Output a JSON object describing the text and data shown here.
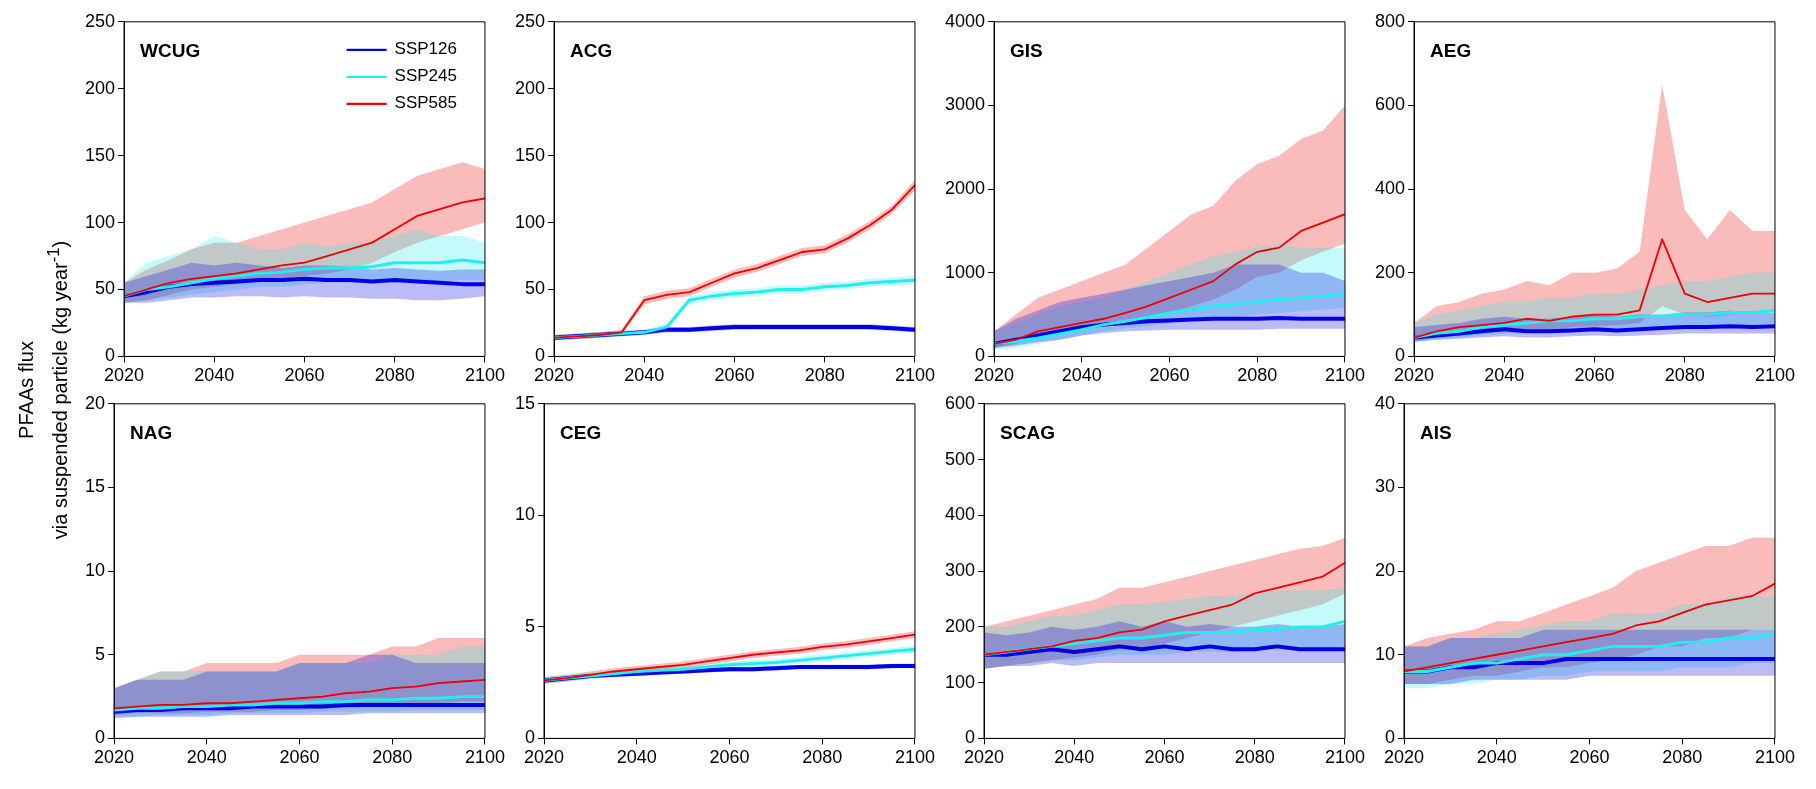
{
  "chart_data": [
    {
      "type": "line",
      "title": "WCUG",
      "ylabel": "PFAAs flux\nvia suspended particle (kg year$^{-1}$)",
      "legend": "top right",
      "grid": false,
      "x": [
        2020,
        2025,
        2030,
        2035,
        2040,
        2045,
        2050,
        2055,
        2060,
        2065,
        2070,
        2075,
        2080,
        2085,
        2090,
        2095,
        2100
      ],
      "xlim": [
        2020,
        2100
      ],
      "xticks": [
        2020,
        2040,
        2060,
        2080,
        2100
      ],
      "ylim": [
        0,
        250
      ],
      "yticks": [
        0,
        50,
        100,
        150,
        200,
        250
      ],
      "series": [
        {
          "name": "SSP126",
          "color": "#0000e6",
          "values": [
            45,
            48,
            52,
            54,
            55,
            56,
            57,
            57,
            58,
            57,
            57,
            56,
            57,
            56,
            55,
            54,
            54
          ],
          "lower": [
            40,
            40,
            42,
            44,
            44,
            45,
            45,
            44,
            45,
            44,
            44,
            43,
            43,
            42,
            42,
            43,
            45
          ],
          "upper": [
            55,
            60,
            65,
            70,
            68,
            70,
            68,
            66,
            68,
            68,
            67,
            65,
            66,
            65,
            64,
            65,
            65
          ]
        },
        {
          "name": "SSP245",
          "color": "#22eeee",
          "values": [
            45,
            50,
            52,
            55,
            58,
            60,
            62,
            63,
            65,
            66,
            66,
            67,
            70,
            70,
            70,
            72,
            70
          ],
          "lower": [
            40,
            42,
            44,
            46,
            48,
            50,
            52,
            52,
            54,
            55,
            55,
            55,
            55,
            56,
            56,
            57,
            57
          ],
          "upper": [
            55,
            70,
            75,
            80,
            90,
            85,
            80,
            80,
            85,
            82,
            85,
            85,
            90,
            95,
            90,
            90,
            85
          ]
        },
        {
          "name": "SSP585",
          "color": "#ee0000",
          "values": [
            45,
            50,
            55,
            58,
            60,
            62,
            65,
            68,
            70,
            75,
            80,
            85,
            95,
            105,
            110,
            115,
            118
          ],
          "lower": [
            40,
            42,
            46,
            50,
            52,
            54,
            56,
            58,
            60,
            62,
            65,
            70,
            78,
            85,
            90,
            95,
            100
          ],
          "upper": [
            55,
            65,
            72,
            80,
            85,
            85,
            90,
            95,
            100,
            105,
            110,
            115,
            125,
            135,
            140,
            145,
            140
          ]
        }
      ]
    },
    {
      "type": "line",
      "title": "ACG",
      "grid": false,
      "x": [
        2020,
        2025,
        2030,
        2035,
        2040,
        2045,
        2050,
        2055,
        2060,
        2065,
        2070,
        2075,
        2080,
        2085,
        2090,
        2095,
        2100
      ],
      "xlim": [
        2020,
        2100
      ],
      "xticks": [
        2020,
        2040,
        2060,
        2080,
        2100
      ],
      "ylim": [
        0,
        250
      ],
      "yticks": [
        0,
        50,
        100,
        150,
        200,
        250
      ],
      "series": [
        {
          "color": "#0000e6",
          "values": [
            14,
            15,
            16,
            17,
            18,
            20,
            20,
            21,
            22,
            22,
            22,
            22,
            22,
            22,
            22,
            21,
            20
          ],
          "lower": [
            12,
            13,
            14,
            15,
            16,
            18,
            18,
            19,
            20,
            20,
            20,
            20,
            20,
            20,
            20,
            19,
            18
          ],
          "upper": [
            16,
            17,
            18,
            19,
            20,
            22,
            22,
            23,
            24,
            24,
            24,
            24,
            24,
            24,
            24,
            23,
            22
          ]
        },
        {
          "color": "#22eeee",
          "values": [
            14,
            15,
            16,
            17,
            18,
            22,
            42,
            45,
            47,
            48,
            50,
            50,
            52,
            53,
            55,
            56,
            57
          ],
          "lower": [
            12,
            13,
            14,
            15,
            16,
            20,
            39,
            42,
            44,
            45,
            47,
            47,
            49,
            50,
            52,
            53,
            54
          ],
          "upper": [
            16,
            17,
            18,
            19,
            20,
            24,
            45,
            48,
            50,
            51,
            53,
            53,
            55,
            56,
            58,
            59,
            60
          ]
        },
        {
          "color": "#ee0000",
          "values": [
            14,
            15,
            16,
            18,
            42,
            46,
            48,
            55,
            62,
            66,
            72,
            78,
            80,
            88,
            98,
            110,
            128
          ],
          "lower": [
            12,
            13,
            14,
            16,
            39,
            43,
            45,
            52,
            59,
            63,
            69,
            75,
            77,
            85,
            95,
            107,
            124
          ],
          "upper": [
            16,
            17,
            18,
            20,
            45,
            49,
            51,
            58,
            65,
            69,
            75,
            81,
            83,
            91,
            101,
            113,
            132
          ]
        }
      ]
    },
    {
      "type": "line",
      "title": "GIS",
      "grid": false,
      "x": [
        2020,
        2025,
        2030,
        2035,
        2040,
        2045,
        2050,
        2055,
        2060,
        2065,
        2070,
        2075,
        2080,
        2085,
        2090,
        2095,
        2100
      ],
      "xlim": [
        2020,
        2100
      ],
      "xticks": [
        2020,
        2040,
        2060,
        2080,
        2100
      ],
      "ylim": [
        0,
        4000
      ],
      "yticks": [
        0,
        1000,
        2000,
        3000,
        4000
      ],
      "series": [
        {
          "color": "#0000e6",
          "values": [
            150,
            200,
            250,
            300,
            350,
            380,
            400,
            420,
            430,
            440,
            450,
            450,
            450,
            460,
            450,
            450,
            450
          ],
          "lower": [
            100,
            130,
            170,
            200,
            250,
            280,
            300,
            310,
            320,
            320,
            320,
            320,
            320,
            330,
            330,
            330,
            330
          ],
          "upper": [
            300,
            450,
            550,
            650,
            700,
            750,
            800,
            850,
            900,
            950,
            1000,
            1100,
            1100,
            1100,
            1000,
            1000,
            900
          ]
        },
        {
          "color": "#22eeee",
          "values": [
            150,
            180,
            220,
            270,
            320,
            380,
            420,
            470,
            520,
            560,
            600,
            620,
            650,
            680,
            700,
            720,
            750
          ],
          "lower": [
            80,
            100,
            150,
            200,
            250,
            300,
            330,
            360,
            400,
            420,
            450,
            470,
            500,
            520,
            540,
            560,
            580
          ],
          "upper": [
            300,
            400,
            500,
            600,
            650,
            700,
            800,
            900,
            1000,
            1100,
            1200,
            1250,
            1300,
            1350,
            1300,
            1300,
            1300
          ]
        },
        {
          "color": "#ee0000",
          "values": [
            150,
            200,
            300,
            350,
            400,
            450,
            520,
            600,
            700,
            800,
            900,
            1100,
            1250,
            1300,
            1500,
            1600,
            1700
          ],
          "lower": [
            100,
            150,
            220,
            280,
            320,
            360,
            400,
            450,
            520,
            600,
            680,
            800,
            950,
            1000,
            1150,
            1250,
            1350
          ],
          "upper": [
            300,
            500,
            700,
            800,
            900,
            1000,
            1100,
            1300,
            1500,
            1700,
            1800,
            2100,
            2300,
            2400,
            2600,
            2700,
            3000
          ]
        }
      ]
    },
    {
      "type": "line",
      "title": "AEG",
      "grid": false,
      "x": [
        2020,
        2025,
        2030,
        2035,
        2040,
        2045,
        2050,
        2055,
        2060,
        2065,
        2070,
        2075,
        2080,
        2085,
        2090,
        2095,
        2100
      ],
      "xlim": [
        2020,
        2100
      ],
      "xticks": [
        2020,
        2040,
        2060,
        2080,
        2100
      ],
      "ylim": [
        0,
        800
      ],
      "yticks": [
        0,
        200,
        400,
        600,
        800
      ],
      "series": [
        {
          "color": "#0000e6",
          "values": [
            45,
            50,
            55,
            60,
            65,
            60,
            60,
            62,
            65,
            62,
            65,
            68,
            70,
            70,
            72,
            70,
            72
          ],
          "lower": [
            35,
            40,
            42,
            45,
            48,
            45,
            45,
            48,
            50,
            48,
            50,
            52,
            55,
            55,
            55,
            55,
            55
          ],
          "upper": [
            70,
            75,
            80,
            90,
            95,
            90,
            90,
            95,
            100,
            95,
            100,
            100,
            105,
            105,
            110,
            105,
            105
          ]
        },
        {
          "color": "#22eeee",
          "values": [
            45,
            55,
            60,
            70,
            75,
            80,
            85,
            85,
            90,
            90,
            95,
            95,
            100,
            100,
            105,
            105,
            110
          ],
          "lower": [
            35,
            40,
            45,
            50,
            55,
            55,
            60,
            60,
            65,
            65,
            70,
            70,
            70,
            75,
            75,
            75,
            80
          ],
          "upper": [
            80,
            100,
            110,
            120,
            130,
            130,
            140,
            140,
            150,
            150,
            160,
            170,
            180,
            180,
            190,
            200,
            200
          ]
        },
        {
          "color": "#ee0000",
          "values": [
            45,
            60,
            70,
            75,
            80,
            90,
            85,
            95,
            100,
            100,
            110,
            280,
            150,
            130,
            140,
            150,
            150
          ],
          "lower": [
            35,
            45,
            50,
            55,
            60,
            65,
            62,
            70,
            72,
            75,
            80,
            120,
            100,
            95,
            100,
            105,
            110
          ],
          "upper": [
            80,
            120,
            130,
            150,
            160,
            180,
            170,
            200,
            200,
            210,
            250,
            650,
            350,
            280,
            350,
            300,
            300
          ]
        }
      ]
    },
    {
      "type": "line",
      "title": "NAG",
      "grid": false,
      "x": [
        2020,
        2025,
        2030,
        2035,
        2040,
        2045,
        2050,
        2055,
        2060,
        2065,
        2070,
        2075,
        2080,
        2085,
        2090,
        2095,
        2100
      ],
      "xlim": [
        2020,
        2100
      ],
      "xticks": [
        2020,
        2040,
        2060,
        2080,
        2100
      ],
      "ylim": [
        0,
        20
      ],
      "yticks": [
        0,
        5,
        10,
        15,
        20
      ],
      "series": [
        {
          "color": "#0000e6",
          "values": [
            1.6,
            1.7,
            1.7,
            1.8,
            1.8,
            1.8,
            1.9,
            1.9,
            1.9,
            1.9,
            2.0,
            2.0,
            2.0,
            2.0,
            2.0,
            2.0,
            2.0
          ],
          "lower": [
            1.2,
            1.3,
            1.3,
            1.3,
            1.3,
            1.4,
            1.4,
            1.4,
            1.4,
            1.4,
            1.4,
            1.5,
            1.5,
            1.5,
            1.5,
            1.5,
            1.5
          ],
          "upper": [
            3.0,
            3.5,
            3.5,
            3.5,
            4.0,
            4.0,
            4.0,
            4.0,
            4.5,
            4.5,
            4.5,
            5.0,
            5.0,
            4.5,
            4.5,
            4.5,
            4.5
          ]
        },
        {
          "color": "#22eeee",
          "values": [
            1.7,
            1.8,
            1.8,
            1.9,
            1.9,
            2.0,
            2.0,
            2.1,
            2.1,
            2.2,
            2.2,
            2.3,
            2.3,
            2.4,
            2.4,
            2.5,
            2.5
          ],
          "lower": [
            1.3,
            1.3,
            1.4,
            1.4,
            1.4,
            1.5,
            1.5,
            1.5,
            1.5,
            1.6,
            1.6,
            1.6,
            1.6,
            1.7,
            1.7,
            1.7,
            1.7
          ],
          "upper": [
            3.0,
            3.5,
            4.0,
            4.0,
            4.0,
            4.0,
            4.0,
            4.0,
            4.5,
            4.5,
            4.5,
            4.5,
            5.0,
            5.0,
            5.0,
            5.5,
            5.5
          ]
        },
        {
          "color": "#ee0000",
          "values": [
            1.8,
            1.9,
            2.0,
            2.0,
            2.1,
            2.1,
            2.2,
            2.3,
            2.4,
            2.5,
            2.7,
            2.8,
            3.0,
            3.1,
            3.3,
            3.4,
            3.5
          ],
          "lower": [
            1.4,
            1.5,
            1.5,
            1.5,
            1.6,
            1.6,
            1.6,
            1.7,
            1.7,
            1.8,
            1.8,
            1.9,
            2.0,
            2.0,
            2.1,
            2.2,
            2.2
          ],
          "upper": [
            3.0,
            3.5,
            4.0,
            4.0,
            4.5,
            4.5,
            4.5,
            4.5,
            5.0,
            5.0,
            5.0,
            5.0,
            5.5,
            5.5,
            6.0,
            6.0,
            6.0
          ]
        }
      ]
    },
    {
      "type": "line",
      "title": "CEG",
      "grid": false,
      "x": [
        2020,
        2025,
        2030,
        2035,
        2040,
        2045,
        2050,
        2055,
        2060,
        2065,
        2070,
        2075,
        2080,
        2085,
        2090,
        2095,
        2100
      ],
      "xlim": [
        2020,
        2100
      ],
      "xticks": [
        2020,
        2040,
        2060,
        2080,
        2100
      ],
      "ylim": [
        0,
        15
      ],
      "yticks": [
        0,
        5,
        10,
        15
      ],
      "series": [
        {
          "color": "#0000e6",
          "values": [
            2.6,
            2.7,
            2.8,
            2.85,
            2.9,
            2.95,
            3.0,
            3.05,
            3.1,
            3.1,
            3.15,
            3.2,
            3.2,
            3.2,
            3.2,
            3.25,
            3.25
          ],
          "lower": [
            2.5,
            2.6,
            2.7,
            2.75,
            2.8,
            2.85,
            2.9,
            2.95,
            3.0,
            3.0,
            3.05,
            3.1,
            3.1,
            3.1,
            3.1,
            3.15,
            3.15
          ],
          "upper": [
            2.7,
            2.8,
            2.9,
            2.95,
            3.0,
            3.05,
            3.1,
            3.15,
            3.2,
            3.2,
            3.25,
            3.3,
            3.3,
            3.3,
            3.3,
            3.35,
            3.35
          ]
        },
        {
          "color": "#22eeee",
          "values": [
            2.6,
            2.7,
            2.8,
            2.9,
            3.0,
            3.05,
            3.1,
            3.2,
            3.3,
            3.35,
            3.4,
            3.5,
            3.6,
            3.7,
            3.8,
            3.9,
            4.0
          ],
          "lower": [
            2.45,
            2.55,
            2.65,
            2.75,
            2.85,
            2.9,
            2.95,
            3.05,
            3.15,
            3.2,
            3.25,
            3.35,
            3.45,
            3.55,
            3.65,
            3.75,
            3.85
          ],
          "upper": [
            2.75,
            2.85,
            2.95,
            3.05,
            3.15,
            3.2,
            3.25,
            3.35,
            3.45,
            3.5,
            3.55,
            3.65,
            3.75,
            3.85,
            3.95,
            4.05,
            4.15
          ]
        },
        {
          "color": "#ee0000",
          "values": [
            2.6,
            2.7,
            2.85,
            3.0,
            3.1,
            3.2,
            3.3,
            3.45,
            3.6,
            3.75,
            3.85,
            3.95,
            4.1,
            4.2,
            4.35,
            4.5,
            4.65
          ],
          "lower": [
            2.45,
            2.55,
            2.7,
            2.85,
            2.95,
            3.05,
            3.15,
            3.3,
            3.45,
            3.6,
            3.7,
            3.8,
            3.95,
            4.05,
            4.2,
            4.35,
            4.5
          ],
          "upper": [
            2.75,
            2.85,
            3.0,
            3.15,
            3.25,
            3.35,
            3.45,
            3.6,
            3.75,
            3.9,
            4.0,
            4.1,
            4.25,
            4.35,
            4.5,
            4.65,
            4.8
          ]
        }
      ]
    },
    {
      "type": "line",
      "title": "SCAG",
      "grid": false,
      "x": [
        2020,
        2025,
        2030,
        2035,
        2040,
        2045,
        2050,
        2055,
        2060,
        2065,
        2070,
        2075,
        2080,
        2085,
        2090,
        2095,
        2100
      ],
      "xlim": [
        2020,
        2100
      ],
      "xticks": [
        2020,
        2040,
        2060,
        2080,
        2100
      ],
      "ylim": [
        0,
        600
      ],
      "yticks": [
        0,
        100,
        200,
        300,
        400,
        500,
        600
      ],
      "series": [
        {
          "color": "#0000e6",
          "values": [
            150,
            150,
            155,
            160,
            155,
            160,
            165,
            160,
            165,
            160,
            165,
            160,
            160,
            165,
            160,
            160,
            160
          ],
          "lower": [
            125,
            130,
            130,
            135,
            130,
            135,
            135,
            135,
            135,
            135,
            135,
            135,
            135,
            135,
            135,
            135,
            135
          ],
          "upper": [
            190,
            185,
            190,
            200,
            195,
            200,
            210,
            200,
            210,
            200,
            205,
            200,
            200,
            205,
            200,
            200,
            205
          ]
        },
        {
          "color": "#22eeee",
          "values": [
            150,
            155,
            160,
            165,
            170,
            175,
            180,
            180,
            185,
            190,
            190,
            190,
            195,
            195,
            200,
            200,
            210
          ],
          "lower": [
            125,
            130,
            135,
            140,
            140,
            145,
            150,
            150,
            150,
            155,
            155,
            155,
            160,
            160,
            160,
            160,
            165
          ],
          "upper": [
            200,
            200,
            210,
            220,
            220,
            230,
            240,
            240,
            245,
            250,
            255,
            255,
            260,
            265,
            265,
            265,
            270
          ]
        },
        {
          "color": "#ee0000",
          "values": [
            150,
            155,
            160,
            165,
            175,
            180,
            190,
            195,
            210,
            220,
            230,
            240,
            260,
            270,
            280,
            290,
            315
          ],
          "lower": [
            125,
            130,
            135,
            140,
            145,
            150,
            160,
            160,
            170,
            180,
            190,
            200,
            210,
            220,
            230,
            240,
            260
          ],
          "upper": [
            200,
            210,
            220,
            230,
            240,
            250,
            270,
            270,
            280,
            290,
            300,
            310,
            320,
            330,
            340,
            345,
            360
          ]
        }
      ]
    },
    {
      "type": "line",
      "title": "AIS",
      "grid": false,
      "x": [
        2020,
        2025,
        2030,
        2035,
        2040,
        2045,
        2050,
        2055,
        2060,
        2065,
        2070,
        2075,
        2080,
        2085,
        2090,
        2095,
        2100
      ],
      "xlim": [
        2020,
        2100
      ],
      "xticks": [
        2020,
        2040,
        2060,
        2080,
        2100
      ],
      "ylim": [
        0,
        40
      ],
      "yticks": [
        0,
        10,
        20,
        30,
        40
      ],
      "series": [
        {
          "color": "#0000e6",
          "values": [
            8,
            8,
            8.5,
            8.5,
            9,
            9,
            9,
            9.5,
            9.5,
            9.5,
            9.5,
            9.5,
            9.5,
            9.5,
            9.5,
            9.5,
            9.5
          ],
          "lower": [
            6.5,
            6.5,
            6.5,
            7,
            7,
            7,
            7,
            7,
            7.5,
            7.5,
            7.5,
            7.5,
            7.5,
            7.5,
            7.5,
            7.5,
            7.5
          ],
          "upper": [
            11,
            11,
            12,
            12,
            12,
            12,
            13,
            13,
            13,
            13,
            13,
            13,
            13,
            13,
            13,
            13,
            13
          ]
        },
        {
          "color": "#22eeee",
          "values": [
            8,
            8,
            8.5,
            9,
            9,
            9.5,
            10,
            10,
            10.5,
            11,
            11,
            11,
            11.5,
            11.5,
            12,
            12,
            12.5
          ],
          "lower": [
            6,
            6,
            6.5,
            6.5,
            7,
            7,
            7.5,
            7.5,
            8,
            8,
            8,
            8,
            8.5,
            8.5,
            8.5,
            9,
            9
          ],
          "upper": [
            11,
            11,
            12,
            12,
            12.5,
            13,
            13.5,
            14,
            14,
            15,
            15,
            15,
            16,
            16,
            17,
            17,
            17
          ]
        },
        {
          "color": "#ee0000",
          "values": [
            8,
            8.5,
            9,
            9.5,
            10,
            10.5,
            11,
            11.5,
            12,
            12.5,
            13.5,
            14,
            15,
            16,
            16.5,
            17,
            18.5
          ],
          "lower": [
            6.5,
            6.5,
            7,
            7.5,
            7.5,
            8,
            8.5,
            8.5,
            9,
            9.5,
            10,
            11,
            11,
            12,
            12,
            13,
            13
          ],
          "upper": [
            11,
            12,
            12.5,
            13,
            14,
            14,
            15,
            16,
            17,
            18,
            20,
            21,
            22,
            23,
            23,
            24,
            24
          ]
        }
      ]
    }
  ]
}
